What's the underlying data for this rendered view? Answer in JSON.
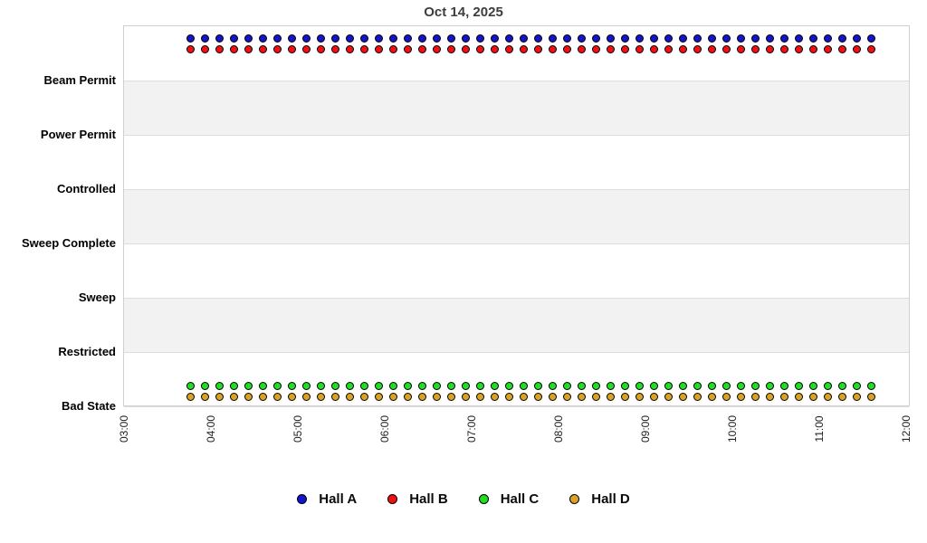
{
  "title": "Oct 14, 2025",
  "chart_data": {
    "type": "scatter",
    "title": "Oct 14, 2025",
    "y_categories": [
      "Beam Permit",
      "Power Permit",
      "Controlled",
      "Sweep Complete",
      "Sweep",
      "Restricted",
      "Bad State"
    ],
    "x_tick_labels": [
      "03:00",
      "04:00",
      "05:00",
      "06:00",
      "07:00",
      "08:00",
      "09:00",
      "10:00",
      "11:00",
      "12:00"
    ],
    "x_range_hours": [
      3,
      12
    ],
    "grid": "horizontal-bands",
    "legend_position": "bottom",
    "sample_start": "03:45",
    "sample_end": "11:35",
    "sample_interval_min": 10,
    "series": [
      {
        "name": "Hall A",
        "color": "#1414CC",
        "state": "Beam Permit"
      },
      {
        "name": "Hall B",
        "color": "#EE1111",
        "state": "Beam Permit"
      },
      {
        "name": "Hall C",
        "color": "#22DD22",
        "state": "Bad State"
      },
      {
        "name": "Hall D",
        "color": "#DCA228",
        "state": "Bad State"
      }
    ]
  }
}
